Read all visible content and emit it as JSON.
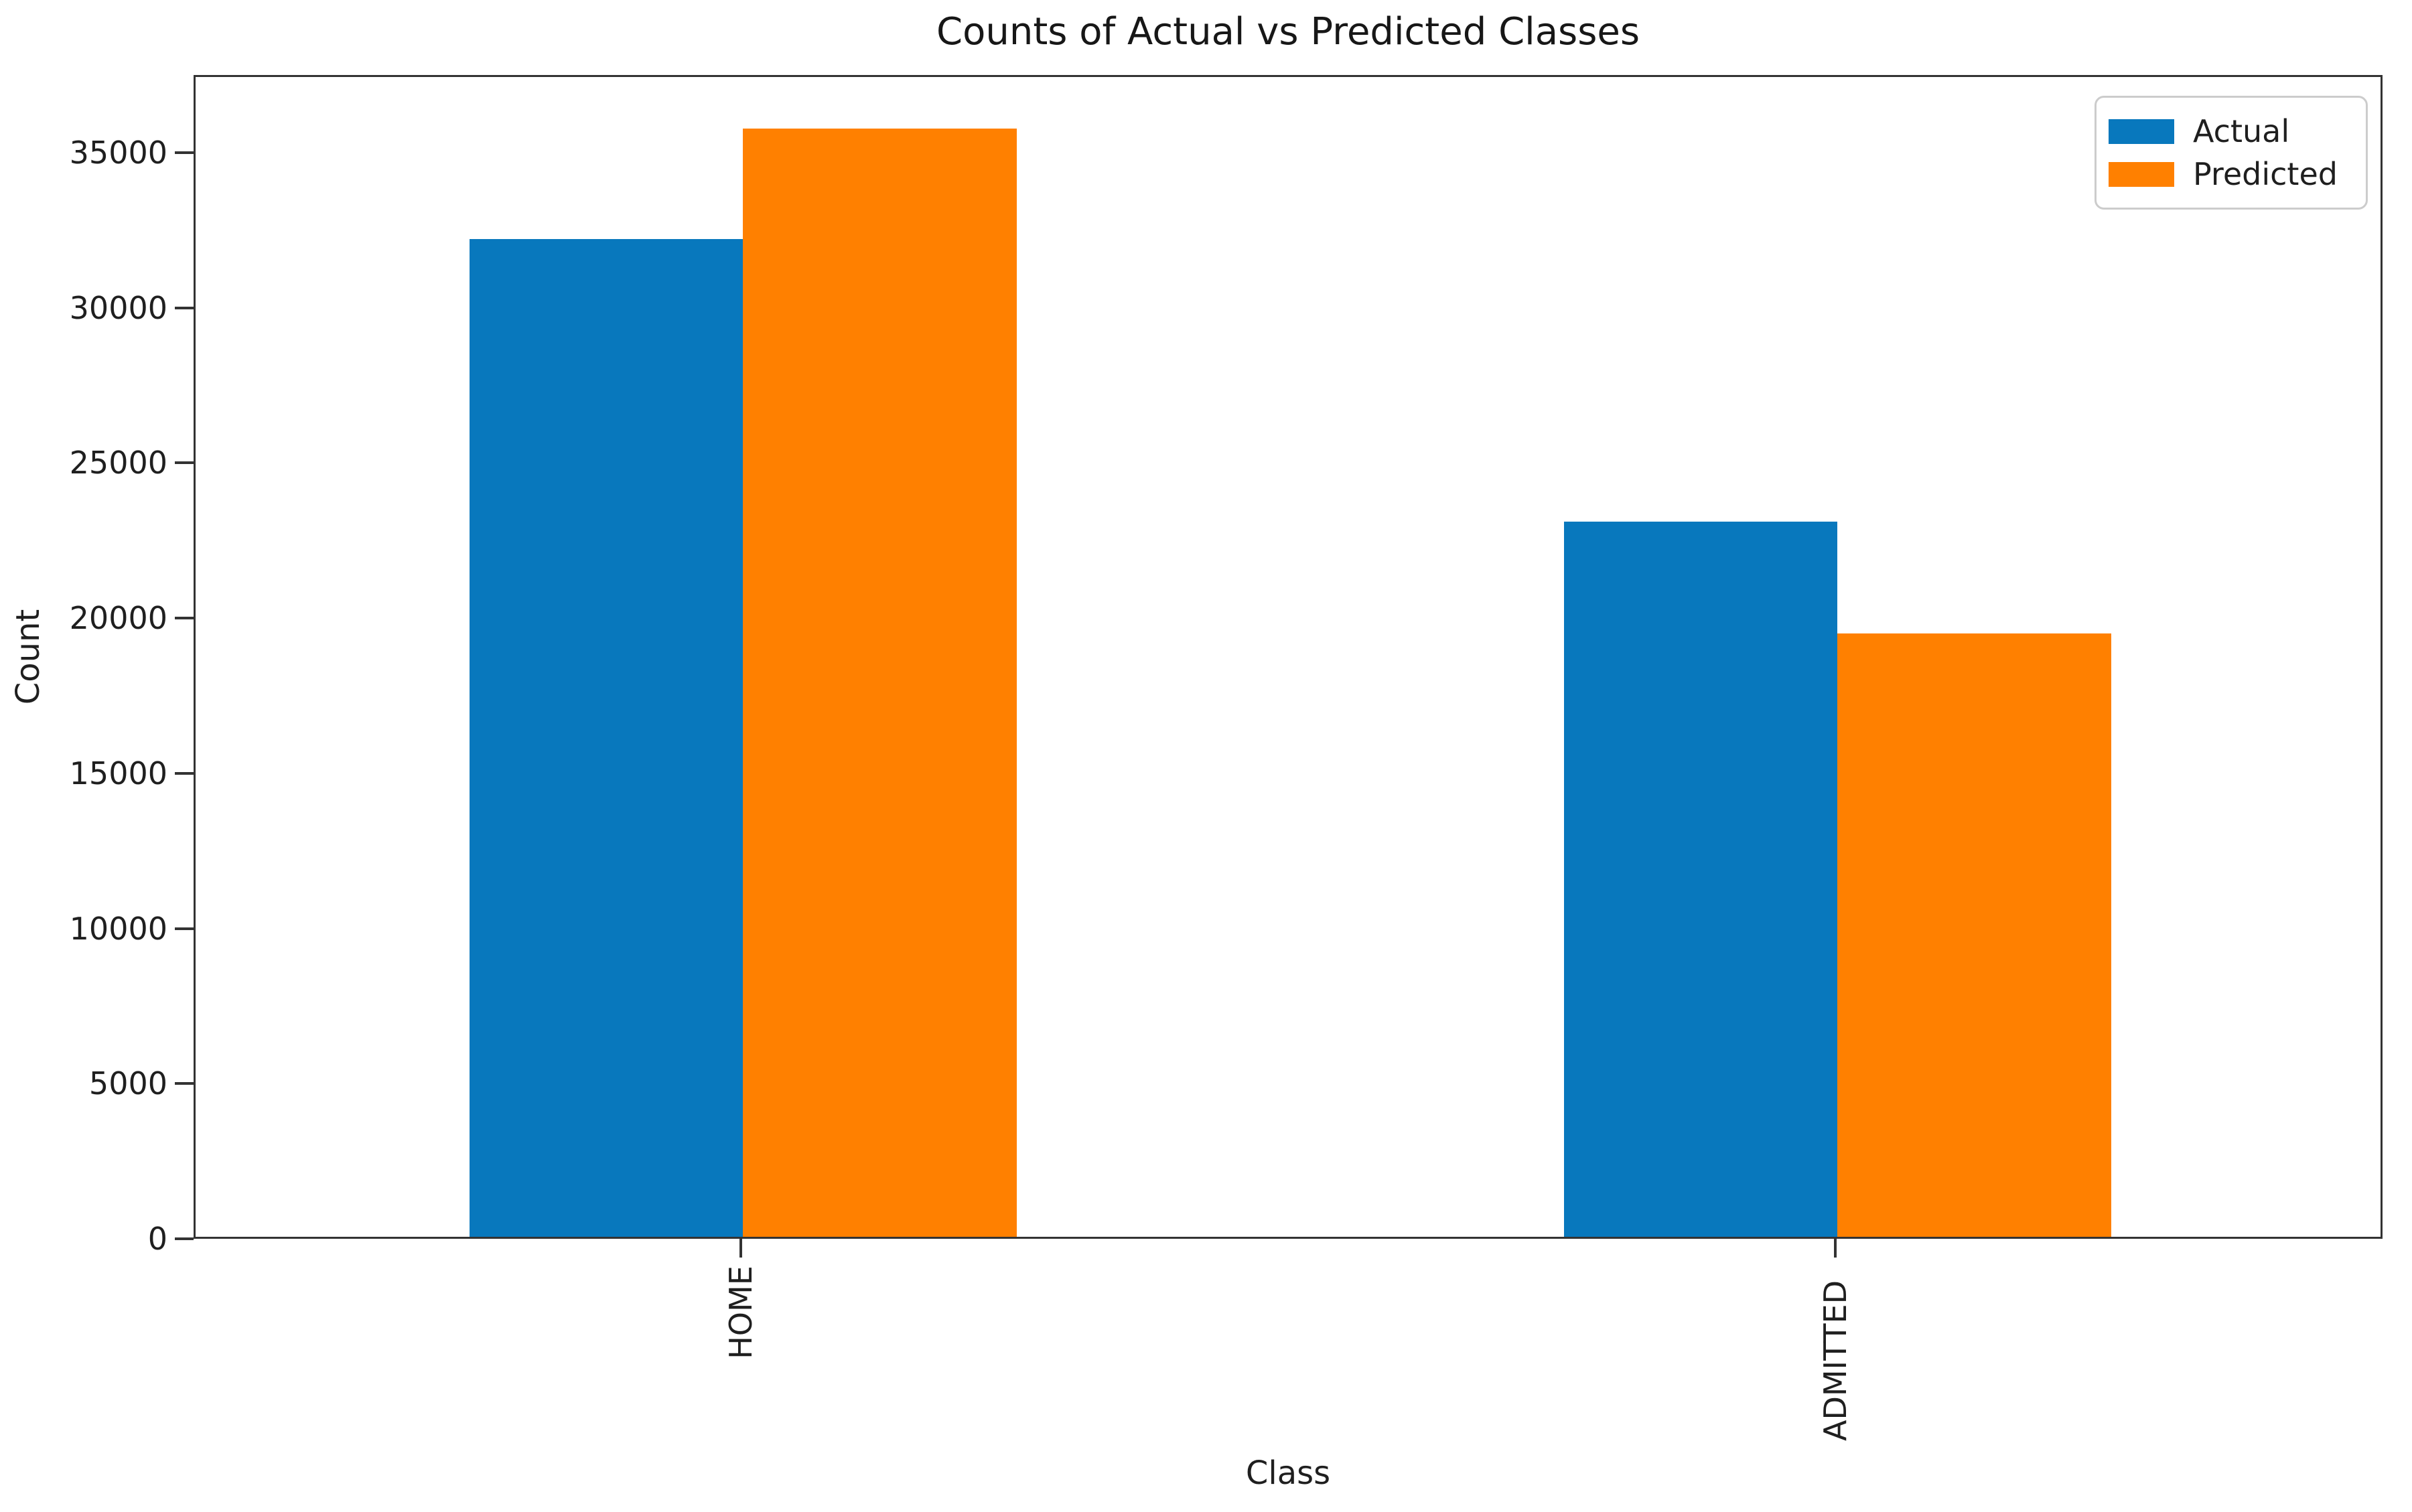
{
  "chart_data": {
    "type": "bar",
    "title": "Counts of Actual vs Predicted Classes",
    "xlabel": "Class",
    "ylabel": "Count",
    "categories": [
      "HOME",
      "ADMITTED"
    ],
    "series": [
      {
        "name": "Actual",
        "color": "#0878bd",
        "values": [
          32150,
          23050
        ]
      },
      {
        "name": "Predicted",
        "color": "#ff8000",
        "values": [
          35700,
          19450
        ]
      }
    ],
    "ylim": [
      0,
      37500
    ],
    "yticks": [
      0,
      5000,
      10000,
      15000,
      20000,
      25000,
      30000,
      35000
    ],
    "grid": false,
    "legend_position": "upper right",
    "xtick_rotation": 90
  }
}
